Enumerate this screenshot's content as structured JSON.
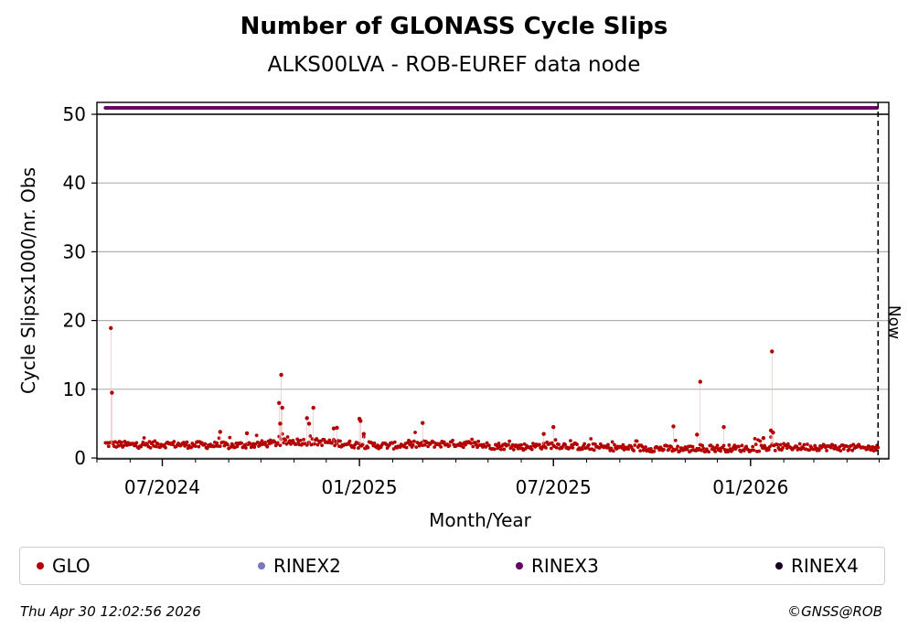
{
  "chart_data": {
    "type": "scatter",
    "title": "Number of GLONASS Cycle Slips",
    "subtitle": "ALKS00LVA - ROB-EUREF data node",
    "xlabel": "Month/Year",
    "ylabel": "Cycle Slipsx1000/nr. Obs",
    "xlim": [
      "2024-05-01",
      "2026-05-10"
    ],
    "ylim": [
      0,
      50
    ],
    "yticks": [
      0,
      10,
      20,
      30,
      40,
      50
    ],
    "xticks": [
      {
        "date": "2024-07-01",
        "label": "07/2024"
      },
      {
        "date": "2025-01-01",
        "label": "01/2025"
      },
      {
        "date": "2025-07-01",
        "label": "07/2025"
      },
      {
        "date": "2026-01-01",
        "label": "01/2026"
      }
    ],
    "grid": "horizontal",
    "now_marker": {
      "date": "2026-04-30",
      "label": "Now"
    },
    "series": [
      {
        "name": "GLO",
        "color": "#b30000",
        "baseline": [
          [
            "2024-05-01",
            2.1
          ],
          [
            "2024-06-01",
            1.9
          ],
          [
            "2024-07-01",
            2.0
          ],
          [
            "2024-08-01",
            1.9
          ],
          [
            "2024-09-01",
            1.8
          ],
          [
            "2024-10-01",
            2.0
          ],
          [
            "2024-11-01",
            2.4
          ],
          [
            "2024-12-01",
            2.3
          ],
          [
            "2025-01-01",
            1.9
          ],
          [
            "2025-02-01",
            1.8
          ],
          [
            "2025-03-01",
            2.0
          ],
          [
            "2025-04-01",
            2.1
          ],
          [
            "2025-05-01",
            1.8
          ],
          [
            "2025-06-01",
            1.6
          ],
          [
            "2025-07-01",
            1.9
          ],
          [
            "2025-08-01",
            1.6
          ],
          [
            "2025-09-01",
            1.5
          ],
          [
            "2025-10-01",
            1.4
          ],
          [
            "2025-11-01",
            1.3
          ],
          [
            "2025-12-01",
            1.4
          ],
          [
            "2026-01-01",
            1.4
          ],
          [
            "2026-02-01",
            1.6
          ],
          [
            "2026-03-01",
            1.6
          ],
          [
            "2026-04-01",
            1.5
          ],
          [
            "2026-04-30",
            1.4
          ]
        ],
        "outliers": [
          [
            "2024-05-14",
            18.9
          ],
          [
            "2024-05-15",
            9.5
          ],
          [
            "2024-08-24",
            3.8
          ],
          [
            "2024-09-18",
            3.6
          ],
          [
            "2024-10-18",
            8.0
          ],
          [
            "2024-10-20",
            12.1
          ],
          [
            "2024-10-21",
            7.3
          ],
          [
            "2024-10-19",
            5.0
          ],
          [
            "2024-11-13",
            5.8
          ],
          [
            "2024-11-15",
            5.0
          ],
          [
            "2024-11-19",
            7.3
          ],
          [
            "2024-12-08",
            4.3
          ],
          [
            "2024-12-11",
            4.4
          ],
          [
            "2025-01-01",
            5.7
          ],
          [
            "2025-01-02",
            5.4
          ],
          [
            "2025-01-05",
            3.5
          ],
          [
            "2025-03-01",
            5.1
          ],
          [
            "2025-06-22",
            3.5
          ],
          [
            "2025-07-01",
            4.5
          ],
          [
            "2025-10-21",
            4.6
          ],
          [
            "2025-11-12",
            3.4
          ],
          [
            "2025-11-15",
            11.1
          ],
          [
            "2025-12-07",
            4.5
          ],
          [
            "2026-01-13",
            2.9
          ],
          [
            "2026-01-21",
            15.5
          ],
          [
            "2026-01-20",
            4.0
          ],
          [
            "2026-01-22",
            3.7
          ]
        ]
      },
      {
        "name": "RINEX2",
        "color": "#7777bb",
        "points": []
      },
      {
        "name": "RINEX3",
        "color": "#660066",
        "level": "top-band",
        "x_range": [
          "2024-05-01",
          "2026-04-30"
        ]
      },
      {
        "name": "RINEX4",
        "color": "#1a0022",
        "points": []
      }
    ],
    "legend": "bottom"
  },
  "footer": {
    "timestamp": "Thu Apr 30 12:02:56 2026",
    "copyright": "©GNSS@ROB"
  }
}
